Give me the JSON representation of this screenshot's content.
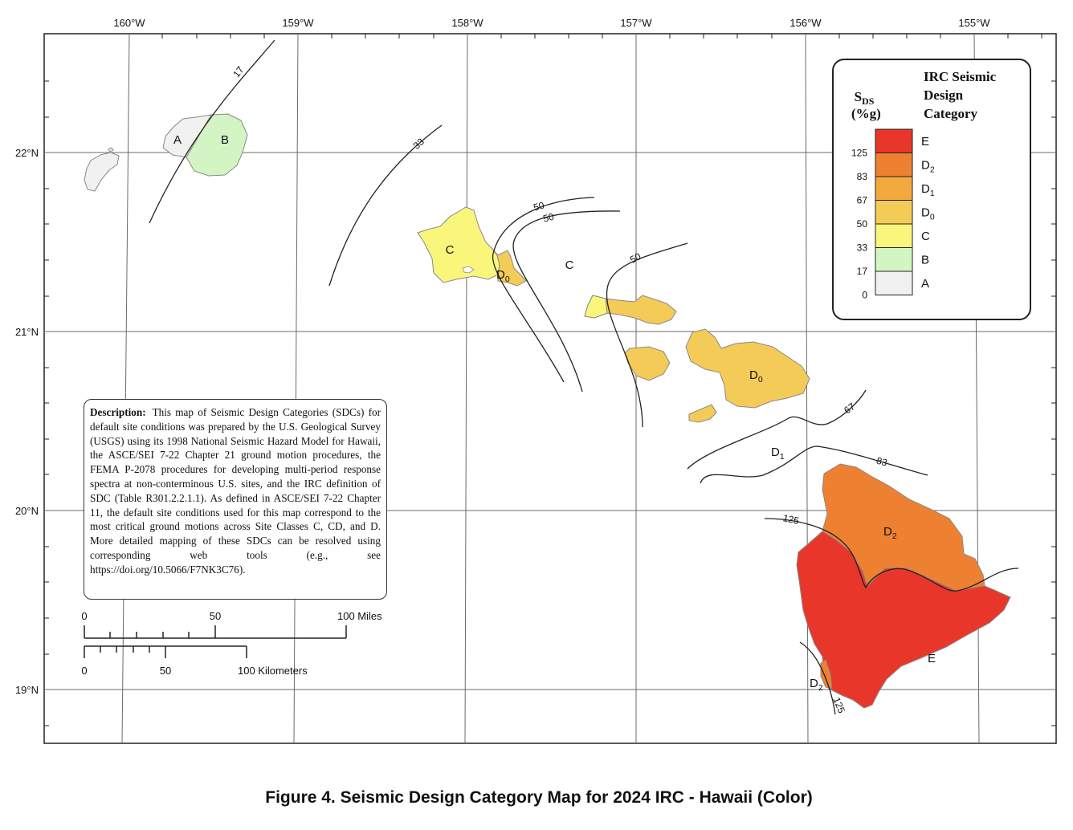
{
  "map": {
    "longitude_labels": [
      "160°W",
      "159°W",
      "158°W",
      "157°W",
      "156°W",
      "155°W"
    ],
    "latitude_labels": [
      "22°N",
      "21°N",
      "20°N",
      "19°N"
    ],
    "contour_labels": [
      "17",
      "33",
      "50",
      "50",
      "50",
      "67",
      "83",
      "125",
      "125"
    ],
    "region_labels": {
      "a": "A",
      "b": "B",
      "c_oahu": "C",
      "c_sea": "C",
      "d0_oahu": "D0",
      "d0_maui": "D0",
      "d1": "D1",
      "d2_hawaii": "D2",
      "d2_south": "D2",
      "e": "E"
    }
  },
  "legend": {
    "title_lines": [
      "IRC Seismic",
      "Design",
      "Category"
    ],
    "sds_label": "SDS",
    "unit_label": "(%g)",
    "thresholds": [
      "125",
      "83",
      "67",
      "50",
      "33",
      "17",
      "0"
    ],
    "categories": [
      {
        "label": "E",
        "color": "#e8372a"
      },
      {
        "label": "D2",
        "color": "#ee8131"
      },
      {
        "label": "D1",
        "color": "#f3a93e"
      },
      {
        "label": "D0",
        "color": "#f5cb58"
      },
      {
        "label": "C",
        "color": "#faf67b"
      },
      {
        "label": "B",
        "color": "#d3f5c3"
      },
      {
        "label": "A",
        "color": "#f1f1f1"
      }
    ]
  },
  "description": {
    "heading": "Description:",
    "text": "This map of Seismic Design Categories (SDCs) for default site conditions was prepared by the U.S. Geological Survey (USGS) using its 1998 National Seismic Hazard Model for Hawaii, the ASCE/SEI 7-22 Chapter 21 ground motion procedures, the FEMA P-2078 procedures for developing multi-period response spectra at non-conterminous U.S. sites, and the IRC definition of SDC (Table R301.2.2.1.1). As defined in ASCE/SEI 7-22 Chapter 11, the default site conditions used for this map correspond to the most critical ground motions across Site Classes C, CD, and D.  More detailed mapping of these SDCs can be resolved using corresponding web tools (e.g., see https://doi.org/10.5066/F7NK3C76)."
  },
  "scale_bar": {
    "miles_ticks": [
      "0",
      "50",
      "100 Miles"
    ],
    "km_ticks": [
      "0",
      "50",
      "100 Kilometers"
    ]
  },
  "caption": "Figure 4. Seismic Design Category Map for 2024 IRC - Hawaii (Color)"
}
